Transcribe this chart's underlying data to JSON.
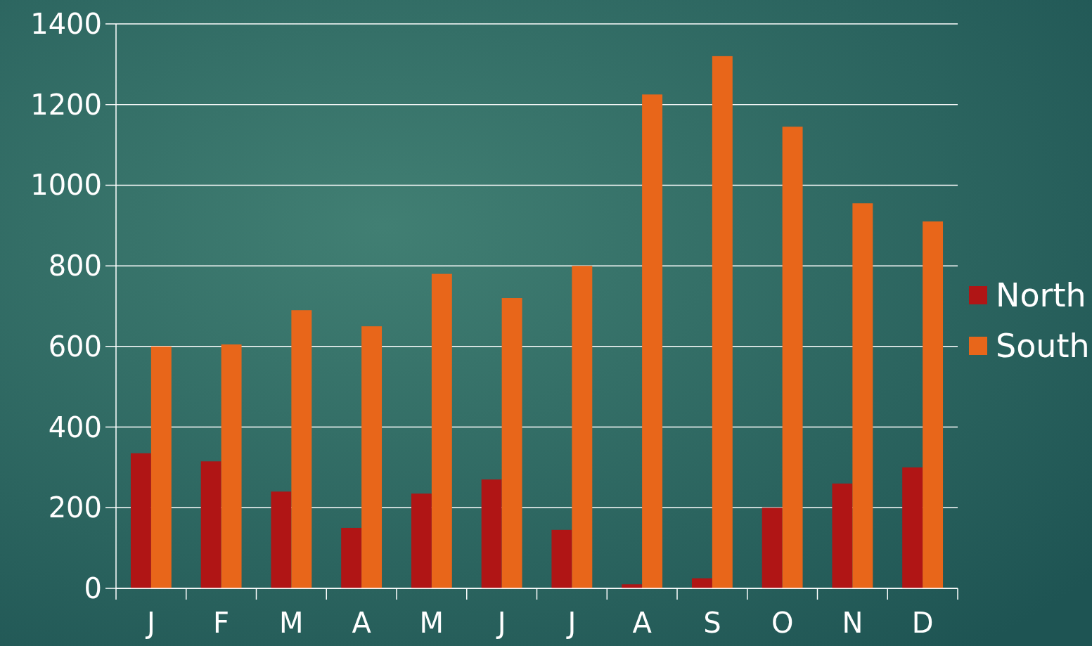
{
  "chart_data": {
    "type": "bar",
    "categories": [
      "J",
      "F",
      "M",
      "A",
      "M",
      "J",
      "J",
      "A",
      "S",
      "O",
      "N",
      "D"
    ],
    "series": [
      {
        "name": "North",
        "color": "#b01515",
        "values": [
          335,
          315,
          240,
          150,
          235,
          270,
          145,
          10,
          25,
          200,
          260,
          300
        ]
      },
      {
        "name": "South",
        "color": "#e8661a",
        "values": [
          600,
          605,
          690,
          650,
          780,
          720,
          800,
          1225,
          1320,
          1145,
          955,
          910
        ]
      }
    ],
    "ylim": [
      0,
      1400
    ],
    "yticks": [
      0,
      200,
      400,
      600,
      800,
      1000,
      1200,
      1400
    ],
    "grid": "y",
    "legend": "right"
  }
}
